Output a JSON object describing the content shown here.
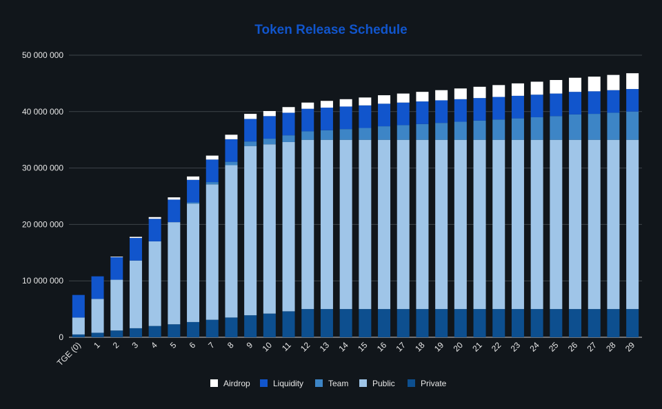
{
  "chart_data": {
    "type": "bar",
    "stacked": true,
    "title": "Token Release Schedule",
    "xlabel": "",
    "ylabel": "",
    "ylim": [
      0,
      50000000
    ],
    "yticks": [
      "0",
      "10 000 000",
      "20 000 000",
      "30 000 000",
      "40 000 000",
      "50 000 000"
    ],
    "grid": "horizontal",
    "legend_position": "bottom",
    "categories": [
      "TGE (0)",
      "1",
      "2",
      "3",
      "4",
      "5",
      "6",
      "7",
      "8",
      "9",
      "10",
      "11",
      "12",
      "13",
      "14",
      "15",
      "16",
      "17",
      "18",
      "19",
      "20",
      "21",
      "22",
      "23",
      "24",
      "25",
      "26",
      "27",
      "28",
      "29"
    ],
    "series": [
      {
        "name": "Private",
        "color": "#0d4f8f",
        "values": [
          500000,
          800000,
          1200000,
          1600000,
          2000000,
          2300000,
          2700000,
          3100000,
          3500000,
          3900000,
          4200000,
          4600000,
          5000000,
          5000000,
          5000000,
          5000000,
          5000000,
          5000000,
          5000000,
          5000000,
          5000000,
          5000000,
          5000000,
          5000000,
          5000000,
          5000000,
          5000000,
          5000000,
          5000000,
          5000000
        ]
      },
      {
        "name": "Public",
        "color": "#9fc5e8",
        "values": [
          3000000,
          6000000,
          9000000,
          12000000,
          15000000,
          18100000,
          21000000,
          24000000,
          27000000,
          30000000,
          30000000,
          30000000,
          30000000,
          30000000,
          30000000,
          30000000,
          30000000,
          30000000,
          30000000,
          30000000,
          30000000,
          30000000,
          30000000,
          30000000,
          30000000,
          30000000,
          30000000,
          30000000,
          30000000,
          30000000
        ]
      },
      {
        "name": "Team",
        "color": "#3d85c6",
        "values": [
          0,
          0,
          0,
          0,
          0,
          0,
          200000,
          400000,
          600000,
          800000,
          1000000,
          1200000,
          1500000,
          1700000,
          1900000,
          2100000,
          2400000,
          2600000,
          2800000,
          3000000,
          3200000,
          3400000,
          3600000,
          3800000,
          4000000,
          4200000,
          4500000,
          4600000,
          4800000,
          5000000
        ]
      },
      {
        "name": "Liquidity",
        "color": "#1155cc",
        "values": [
          4000000,
          4000000,
          4000000,
          4000000,
          4000000,
          4000000,
          4000000,
          4000000,
          4000000,
          4000000,
          4000000,
          4000000,
          4000000,
          4000000,
          4000000,
          4000000,
          4000000,
          4000000,
          4000000,
          4000000,
          4000000,
          4000000,
          4000000,
          4000000,
          4000000,
          4000000,
          4000000,
          4000000,
          4000000,
          4000000
        ]
      },
      {
        "name": "Airdrop",
        "color": "#ffffff",
        "values": [
          0,
          0,
          100000,
          200000,
          300000,
          400000,
          600000,
          700000,
          800000,
          900000,
          900000,
          1000000,
          1100000,
          1200000,
          1300000,
          1400000,
          1500000,
          1600000,
          1700000,
          1800000,
          1900000,
          2000000,
          2100000,
          2200000,
          2300000,
          2400000,
          2500000,
          2600000,
          2700000,
          2800000
        ]
      }
    ],
    "legend_order": [
      "Airdrop",
      "Liquidity",
      "Team",
      "Public",
      "Private"
    ],
    "colors": {
      "background": "#11161b",
      "title": "#1155cc",
      "grid": "#3f454b",
      "text": "#e8e8e8"
    }
  }
}
